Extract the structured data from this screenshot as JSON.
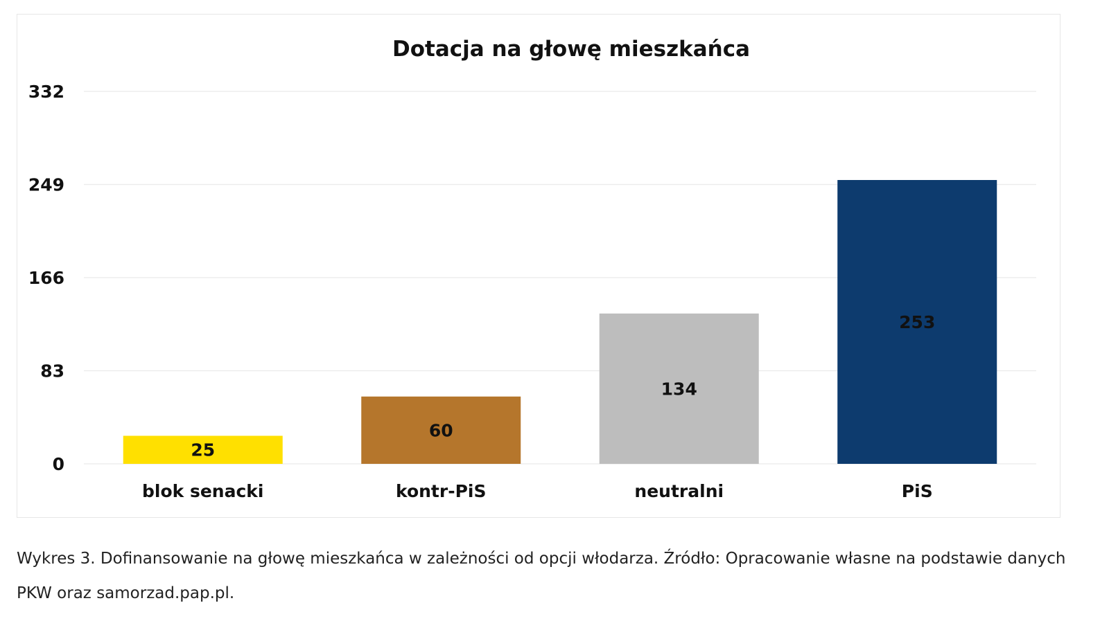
{
  "chart_data": {
    "type": "bar",
    "title": "Dotacja na głowę mieszkańca",
    "categories": [
      "blok senacki",
      "kontr-PiS",
      "neutralni",
      "PiS"
    ],
    "values": [
      25,
      60,
      134,
      253
    ],
    "colors": [
      "#FFE000",
      "#B5762C",
      "#BDBDBD",
      "#0D3B6E"
    ],
    "yticks": [
      0,
      83,
      166,
      249,
      332
    ],
    "ylim": [
      0,
      332
    ],
    "grid": true,
    "legend": "none",
    "xlabel": "",
    "ylabel": ""
  },
  "caption": {
    "text": "Wykres 3. Dofinansowanie na głowę mieszkańca w zależności od opcji włodarza. Źródło: Opracowanie własne na podstawie danych PKW oraz samorzad.pap.pl."
  }
}
